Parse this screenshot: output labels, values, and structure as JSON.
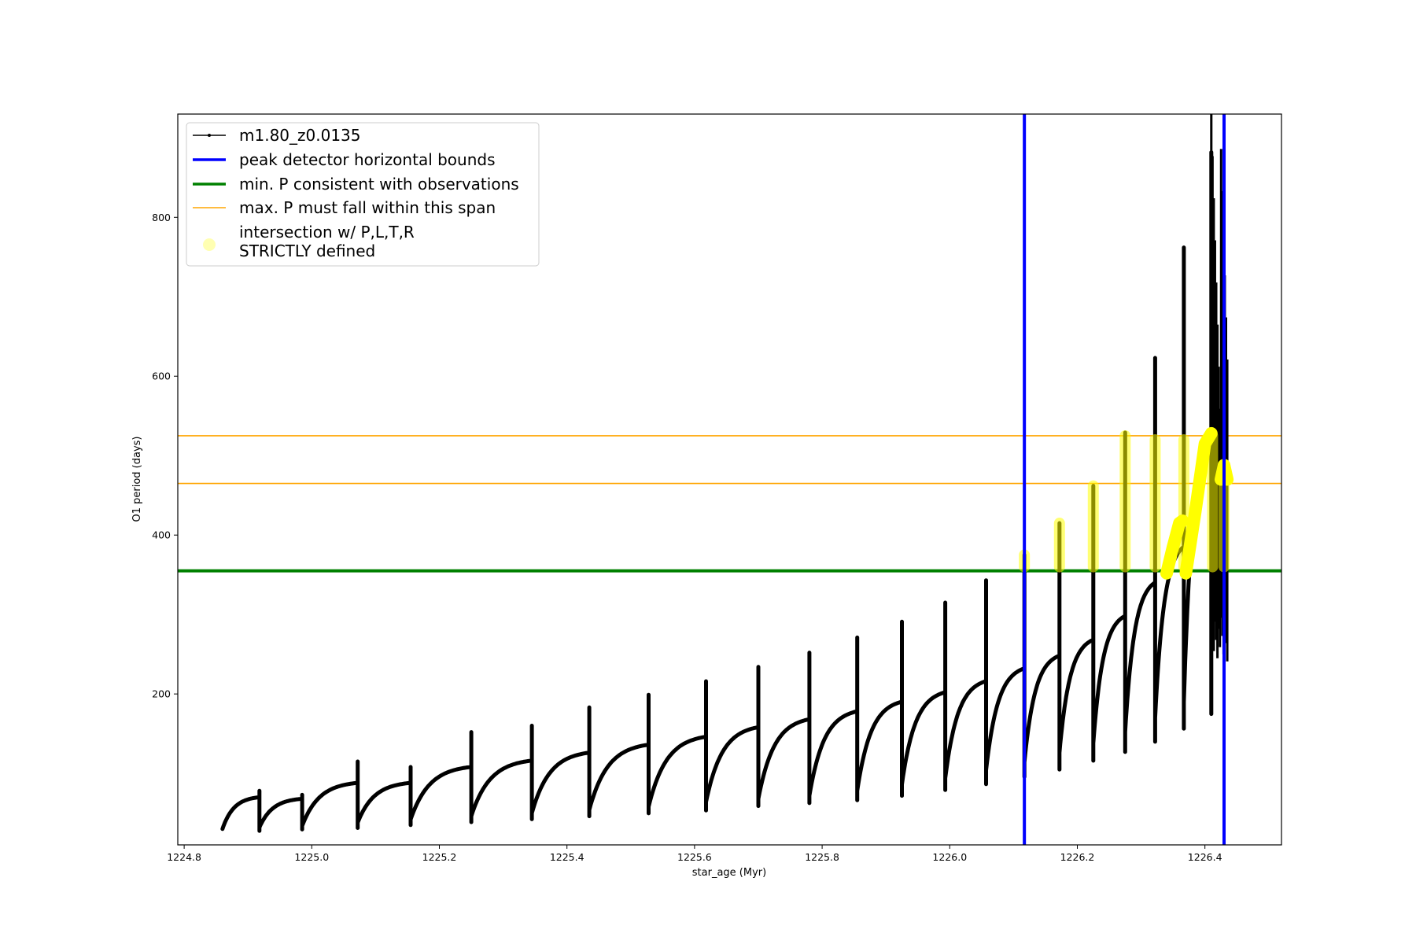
{
  "chart_data": {
    "type": "line",
    "xlabel": "star_age (Myr)",
    "ylabel": "O1 period (days)",
    "xlim": [
      1224.79,
      1226.52
    ],
    "ylim": [
      10,
      930
    ],
    "x_ticks": [
      1224.8,
      1225.0,
      1225.2,
      1225.4,
      1225.6,
      1225.8,
      1226.0,
      1226.2,
      1226.4
    ],
    "x_tick_labels": [
      "1224.8",
      "1225.0",
      "1225.2",
      "1225.4",
      "1225.6",
      "1225.8",
      "1226.0",
      "1226.2",
      "1226.4"
    ],
    "y_ticks": [
      200,
      400,
      600,
      800
    ],
    "y_tick_labels": [
      "200",
      "400",
      "600",
      "800"
    ],
    "grid": false,
    "legend_position": "top-left",
    "legend": [
      {
        "label": "m1.80_z0.0135",
        "style": "line-marker",
        "color": "#000000"
      },
      {
        "label": "peak detector horizontal bounds",
        "style": "thick-line",
        "color": "#0000ff"
      },
      {
        "label": "min. P consistent with observations",
        "style": "thick-line",
        "color": "#008000"
      },
      {
        "label": "max. P must fall within this span",
        "style": "thin-line",
        "color": "#ffa500"
      },
      {
        "label_lines": [
          "intersection w/ P,L,T,R",
          "STRICTLY defined"
        ],
        "style": "dot",
        "color": "#ffff00"
      }
    ],
    "series": [
      {
        "name": "m1.80_z0.0135",
        "color": "#000000",
        "cycles": [
          {
            "start": 1224.86,
            "end": 1224.918,
            "base": 30,
            "top": 70,
            "spike": 78
          },
          {
            "start": 1224.918,
            "end": 1224.985,
            "base": 32,
            "top": 68,
            "spike": 73
          },
          {
            "start": 1224.985,
            "end": 1225.072,
            "base": 34,
            "top": 88,
            "spike": 115
          },
          {
            "start": 1225.072,
            "end": 1225.155,
            "base": 38,
            "top": 88,
            "spike": 108
          },
          {
            "start": 1225.155,
            "end": 1225.25,
            "base": 42,
            "top": 108,
            "spike": 152
          },
          {
            "start": 1225.25,
            "end": 1225.345,
            "base": 46,
            "top": 116,
            "spike": 160
          },
          {
            "start": 1225.345,
            "end": 1225.435,
            "base": 50,
            "top": 126,
            "spike": 183
          },
          {
            "start": 1225.435,
            "end": 1225.528,
            "base": 54,
            "top": 136,
            "spike": 199
          },
          {
            "start": 1225.528,
            "end": 1225.618,
            "base": 58,
            "top": 146,
            "spike": 216
          },
          {
            "start": 1225.618,
            "end": 1225.7,
            "base": 64,
            "top": 158,
            "spike": 234
          },
          {
            "start": 1225.7,
            "end": 1225.78,
            "base": 68,
            "top": 168,
            "spike": 252
          },
          {
            "start": 1225.78,
            "end": 1225.855,
            "base": 72,
            "top": 178,
            "spike": 271
          },
          {
            "start": 1225.855,
            "end": 1225.925,
            "base": 78,
            "top": 190,
            "spike": 291
          },
          {
            "start": 1225.925,
            "end": 1225.993,
            "base": 86,
            "top": 202,
            "spike": 315
          },
          {
            "start": 1225.993,
            "end": 1226.057,
            "base": 94,
            "top": 216,
            "spike": 343
          },
          {
            "start": 1226.057,
            "end": 1226.117,
            "base": 104,
            "top": 232,
            "spike": 375
          },
          {
            "start": 1226.117,
            "end": 1226.172,
            "base": 114,
            "top": 248,
            "spike": 415
          },
          {
            "start": 1226.172,
            "end": 1226.225,
            "base": 126,
            "top": 268,
            "spike": 462
          },
          {
            "start": 1226.225,
            "end": 1226.275,
            "base": 138,
            "top": 298,
            "spike": 529
          },
          {
            "start": 1226.275,
            "end": 1226.322,
            "base": 152,
            "top": 340,
            "spike": 623
          },
          {
            "start": 1226.322,
            "end": 1226.367,
            "base": 170,
            "top": 385,
            "spike": 762
          },
          {
            "start": 1226.367,
            "end": 1226.41,
            "base": 190,
            "top": 520,
            "spike": 882
          }
        ],
        "tail": {
          "x_range": [
            1226.41,
            1226.435
          ],
          "y_range": [
            240,
            930
          ]
        }
      }
    ],
    "vlines": [
      {
        "x": 1226.117,
        "color": "#0000ff"
      },
      {
        "x": 1226.43,
        "color": "#0000ff"
      }
    ],
    "hlines": [
      {
        "y": 355,
        "color": "#008000",
        "role": "min. P consistent with observations"
      },
      {
        "y": 465,
        "color": "#ffa500",
        "role": "max. P span lower"
      },
      {
        "y": 525,
        "color": "#ffa500",
        "role": "max. P span upper"
      }
    ],
    "highlight_segments": [
      {
        "x": 1226.117,
        "y_from": 360,
        "y_to": 375
      },
      {
        "x": 1226.172,
        "y_from": 360,
        "y_to": 415
      },
      {
        "x": 1226.225,
        "y_from": 360,
        "y_to": 462
      },
      {
        "x": 1226.275,
        "y_from": 360,
        "y_to": 525
      },
      {
        "x": 1226.322,
        "y_from": 360,
        "y_to": 520
      },
      {
        "x": 1226.367,
        "y_from": 360,
        "y_to": 520
      },
      {
        "x": 1226.412,
        "y_from": 360,
        "y_to": 525
      },
      {
        "x": 1226.43,
        "y_from": 360,
        "y_to": 485
      }
    ],
    "highlight_curves": [
      {
        "points": [
          [
            1226.34,
            352
          ],
          [
            1226.35,
            385
          ],
          [
            1226.36,
            415
          ],
          [
            1226.365,
            418
          ]
        ]
      },
      {
        "points": [
          [
            1226.37,
            352
          ],
          [
            1226.385,
            430
          ],
          [
            1226.4,
            515
          ],
          [
            1226.41,
            528
          ]
        ]
      },
      {
        "points": [
          [
            1226.425,
            470
          ],
          [
            1226.43,
            488
          ],
          [
            1226.435,
            470
          ]
        ]
      }
    ]
  }
}
